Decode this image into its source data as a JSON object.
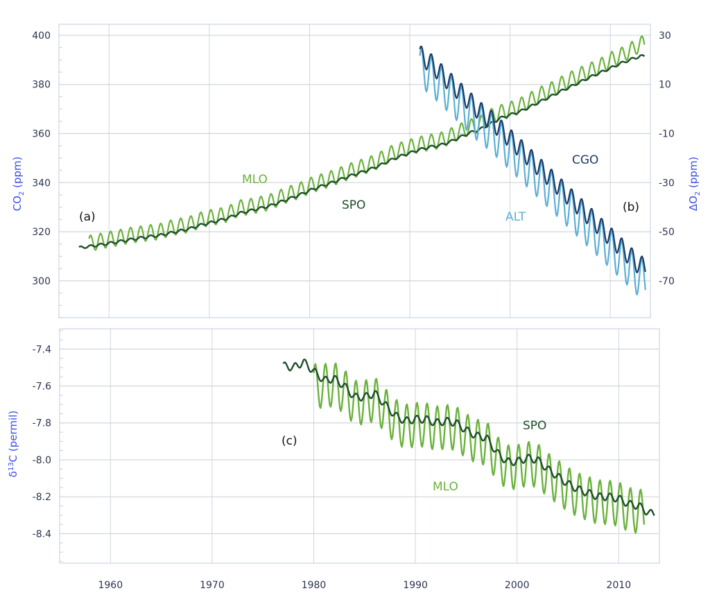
{
  "chart_data": [
    {
      "type": "line",
      "panel": "top",
      "xlabel": "",
      "xlim": [
        1955,
        2014
      ],
      "x_ticks": [
        "1960",
        "1970",
        "1980",
        "1990",
        "2000",
        "2010"
      ],
      "ylabel_left": "CO",
      "ylabel_left_sub": "2",
      "ylabel_left_unit": " (ppm)",
      "ylim_left": [
        285,
        404.5
      ],
      "y_ticks_left": [
        "300",
        "320",
        "340",
        "360",
        "380",
        "400"
      ],
      "ylabel_right": "ΔO",
      "ylabel_right_sub": "2",
      "ylabel_right_unit": " (ppm)",
      "ylim_right": [
        -85,
        34.5
      ],
      "y_ticks_right": [
        "-70",
        "-50",
        "-30",
        "-10",
        "10",
        "30"
      ],
      "grid": true,
      "panel_label_left": "(a)",
      "panel_label_right": "(b)",
      "series": [
        {
          "name": "MLO",
          "axis": "left",
          "color": "#6ab23c",
          "start_year": 1958,
          "seasonal_amplitude": 3.2,
          "annual": [
            315.3,
            316.0,
            316.9,
            317.6,
            318.5,
            319.0,
            319.6,
            320.0,
            321.4,
            322.2,
            323.0,
            324.6,
            325.7,
            326.3,
            327.5,
            329.7,
            330.2,
            331.1,
            332.0,
            333.8,
            335.4,
            336.8,
            338.7,
            340.1,
            341.4,
            343.0,
            344.6,
            346.0,
            347.4,
            349.2,
            351.6,
            353.1,
            354.4,
            355.6,
            356.4,
            357.1,
            358.8,
            360.8,
            362.6,
            363.7,
            366.7,
            368.4,
            369.7,
            371.3,
            373.5,
            375.8,
            377.5,
            379.8,
            381.9,
            383.8,
            385.6,
            387.4,
            389.9,
            391.6,
            393.8,
            396.5
          ]
        },
        {
          "name": "SPO",
          "axis": "left",
          "color": "#1e4d2b",
          "start_year": 1957,
          "seasonal_amplitude": 0.5,
          "annual": [
            313.5,
            314.0,
            314.6,
            315.3,
            316.0,
            316.7,
            317.4,
            318.0,
            318.5,
            319.4,
            320.3,
            321.2,
            322.6,
            323.6,
            324.6,
            325.8,
            327.5,
            328.5,
            329.5,
            330.5,
            332.0,
            333.5,
            335.0,
            336.8,
            338.3,
            339.7,
            341.2,
            342.7,
            344.0,
            345.4,
            347.0,
            349.0,
            350.7,
            352.1,
            353.5,
            354.5,
            355.2,
            356.6,
            358.5,
            360.3,
            361.7,
            363.8,
            366.2,
            367.6,
            369.0,
            370.9,
            373.0,
            375.0,
            377.1,
            379.0,
            381.0,
            383.0,
            384.8,
            386.6,
            388.5,
            390.1,
            391.5
          ]
        },
        {
          "name": "ALT",
          "axis": "right",
          "color": "#5aaed6",
          "start_year": 1991,
          "seasonal_amplitude": 8,
          "annual": [
            17,
            14,
            10,
            6,
            2,
            -2,
            -6,
            -9,
            -13,
            -17,
            -21,
            -25,
            -29,
            -33,
            -37,
            -41,
            -45,
            -49,
            -53,
            -57,
            -61,
            -65,
            -69
          ]
        },
        {
          "name": "CGO",
          "axis": "right",
          "color": "#1c3a66",
          "start_year": 1991,
          "seasonal_amplitude": 4,
          "annual": [
            22,
            19,
            15,
            11,
            7,
            3,
            -1,
            -4,
            -8,
            -12,
            -16,
            -20,
            -24,
            -28,
            -32,
            -36,
            -40,
            -44,
            -48,
            -52,
            -56,
            -60,
            -64
          ]
        }
      ]
    },
    {
      "type": "line",
      "panel": "bottom",
      "xlabel": "",
      "xlim": [
        1955,
        2014
      ],
      "x_ticks": [
        "1960",
        "1970",
        "1980",
        "1990",
        "2000",
        "2010"
      ],
      "ylabel": "δ",
      "ylabel_sup": "13",
      "ylabel_unit": "C (permil)",
      "ylim": [
        -8.56,
        -7.29
      ],
      "y_ticks": [
        "-7.4",
        "-7.6",
        "-7.8",
        "-8.0",
        "-8.2",
        "-8.4"
      ],
      "grid": true,
      "panel_label": "(c)",
      "series": [
        {
          "name": "MLO",
          "color": "#6ab23c",
          "start_year": 1980,
          "seasonal_amplitude": 0.12,
          "annual": [
            -7.6,
            -7.6,
            -7.59,
            -7.63,
            -7.69,
            -7.69,
            -7.67,
            -7.73,
            -7.79,
            -7.82,
            -7.81,
            -7.81,
            -7.83,
            -7.82,
            -7.83,
            -7.87,
            -7.9,
            -7.91,
            -7.99,
            -8.04,
            -8.04,
            -8.02,
            -8.03,
            -8.08,
            -8.12,
            -8.16,
            -8.19,
            -8.21,
            -8.23,
            -8.23,
            -8.24,
            -8.27,
            -8.28
          ]
        },
        {
          "name": "SPO",
          "color": "#1e4d2b",
          "start_year": 1977,
          "seasonal_amplitude": 0.02,
          "annual": [
            -7.49,
            -7.5,
            -7.47,
            -7.52,
            -7.57,
            -7.56,
            -7.6,
            -7.66,
            -7.66,
            -7.64,
            -7.7,
            -7.76,
            -7.79,
            -7.78,
            -7.78,
            -7.8,
            -7.79,
            -7.8,
            -7.84,
            -7.87,
            -7.88,
            -7.96,
            -8.01,
            -8.01,
            -7.99,
            -8.0,
            -8.05,
            -8.09,
            -8.13,
            -8.16,
            -8.18,
            -8.2,
            -8.2,
            -8.21,
            -8.24,
            -8.25,
            -8.29
          ]
        }
      ]
    }
  ]
}
